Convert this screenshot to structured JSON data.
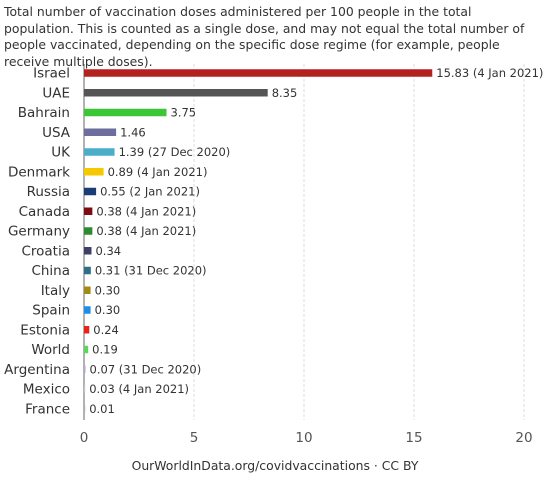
{
  "subtitle": "Total number of vaccination doses administered per 100 people in the total population. This is counted as a single dose, and may not equal the total number of people vaccinated, depending on the specific dose regime (for example, people receive multiple doses).",
  "source": "OurWorldInData.org/covidvaccinations · CC BY",
  "chart_data": {
    "type": "bar",
    "orientation": "horizontal",
    "categories": [
      "Israel",
      "UAE",
      "Bahrain",
      "USA",
      "UK",
      "Denmark",
      "Russia",
      "Canada",
      "Germany",
      "Croatia",
      "China",
      "Italy",
      "Spain",
      "Estonia",
      "World",
      "Argentina",
      "Mexico",
      "France"
    ],
    "values": [
      15.83,
      8.35,
      3.75,
      1.46,
      1.39,
      0.89,
      0.55,
      0.38,
      0.38,
      0.34,
      0.31,
      0.3,
      0.3,
      0.24,
      0.19,
      0.07,
      0.03,
      0.01
    ],
    "value_labels": [
      "15.83 (4 Jan 2021)",
      "8.35",
      "3.75",
      "1.46",
      "1.39 (27 Dec 2020)",
      "0.89 (4 Jan 2021)",
      "0.55 (2 Jan 2021)",
      "0.38 (4 Jan 2021)",
      "0.38 (4 Jan 2021)",
      "0.34",
      "0.31 (31 Dec 2020)",
      "0.30",
      "0.30",
      "0.24",
      "0.19",
      "0.07 (31 Dec 2020)",
      "0.03 (4 Jan 2021)",
      "0.01"
    ],
    "colors": [
      "#b4221f",
      "#555555",
      "#3ac635",
      "#6e6e9e",
      "#4aaec9",
      "#f6c800",
      "#1b3d75",
      "#7c0b12",
      "#2e8a2e",
      "#3e3f66",
      "#2e6f87",
      "#a38a16",
      "#1d8ee8",
      "#e8231c",
      "#5fd35f",
      "#b7a6d6",
      "#c8c8c8",
      "#b0b0b0"
    ],
    "xlim": [
      0,
      20
    ],
    "xticks": [
      "0",
      "5",
      "10",
      "15",
      "20"
    ],
    "xtick_values": [
      0,
      5,
      10,
      15,
      20
    ],
    "grid": true
  }
}
